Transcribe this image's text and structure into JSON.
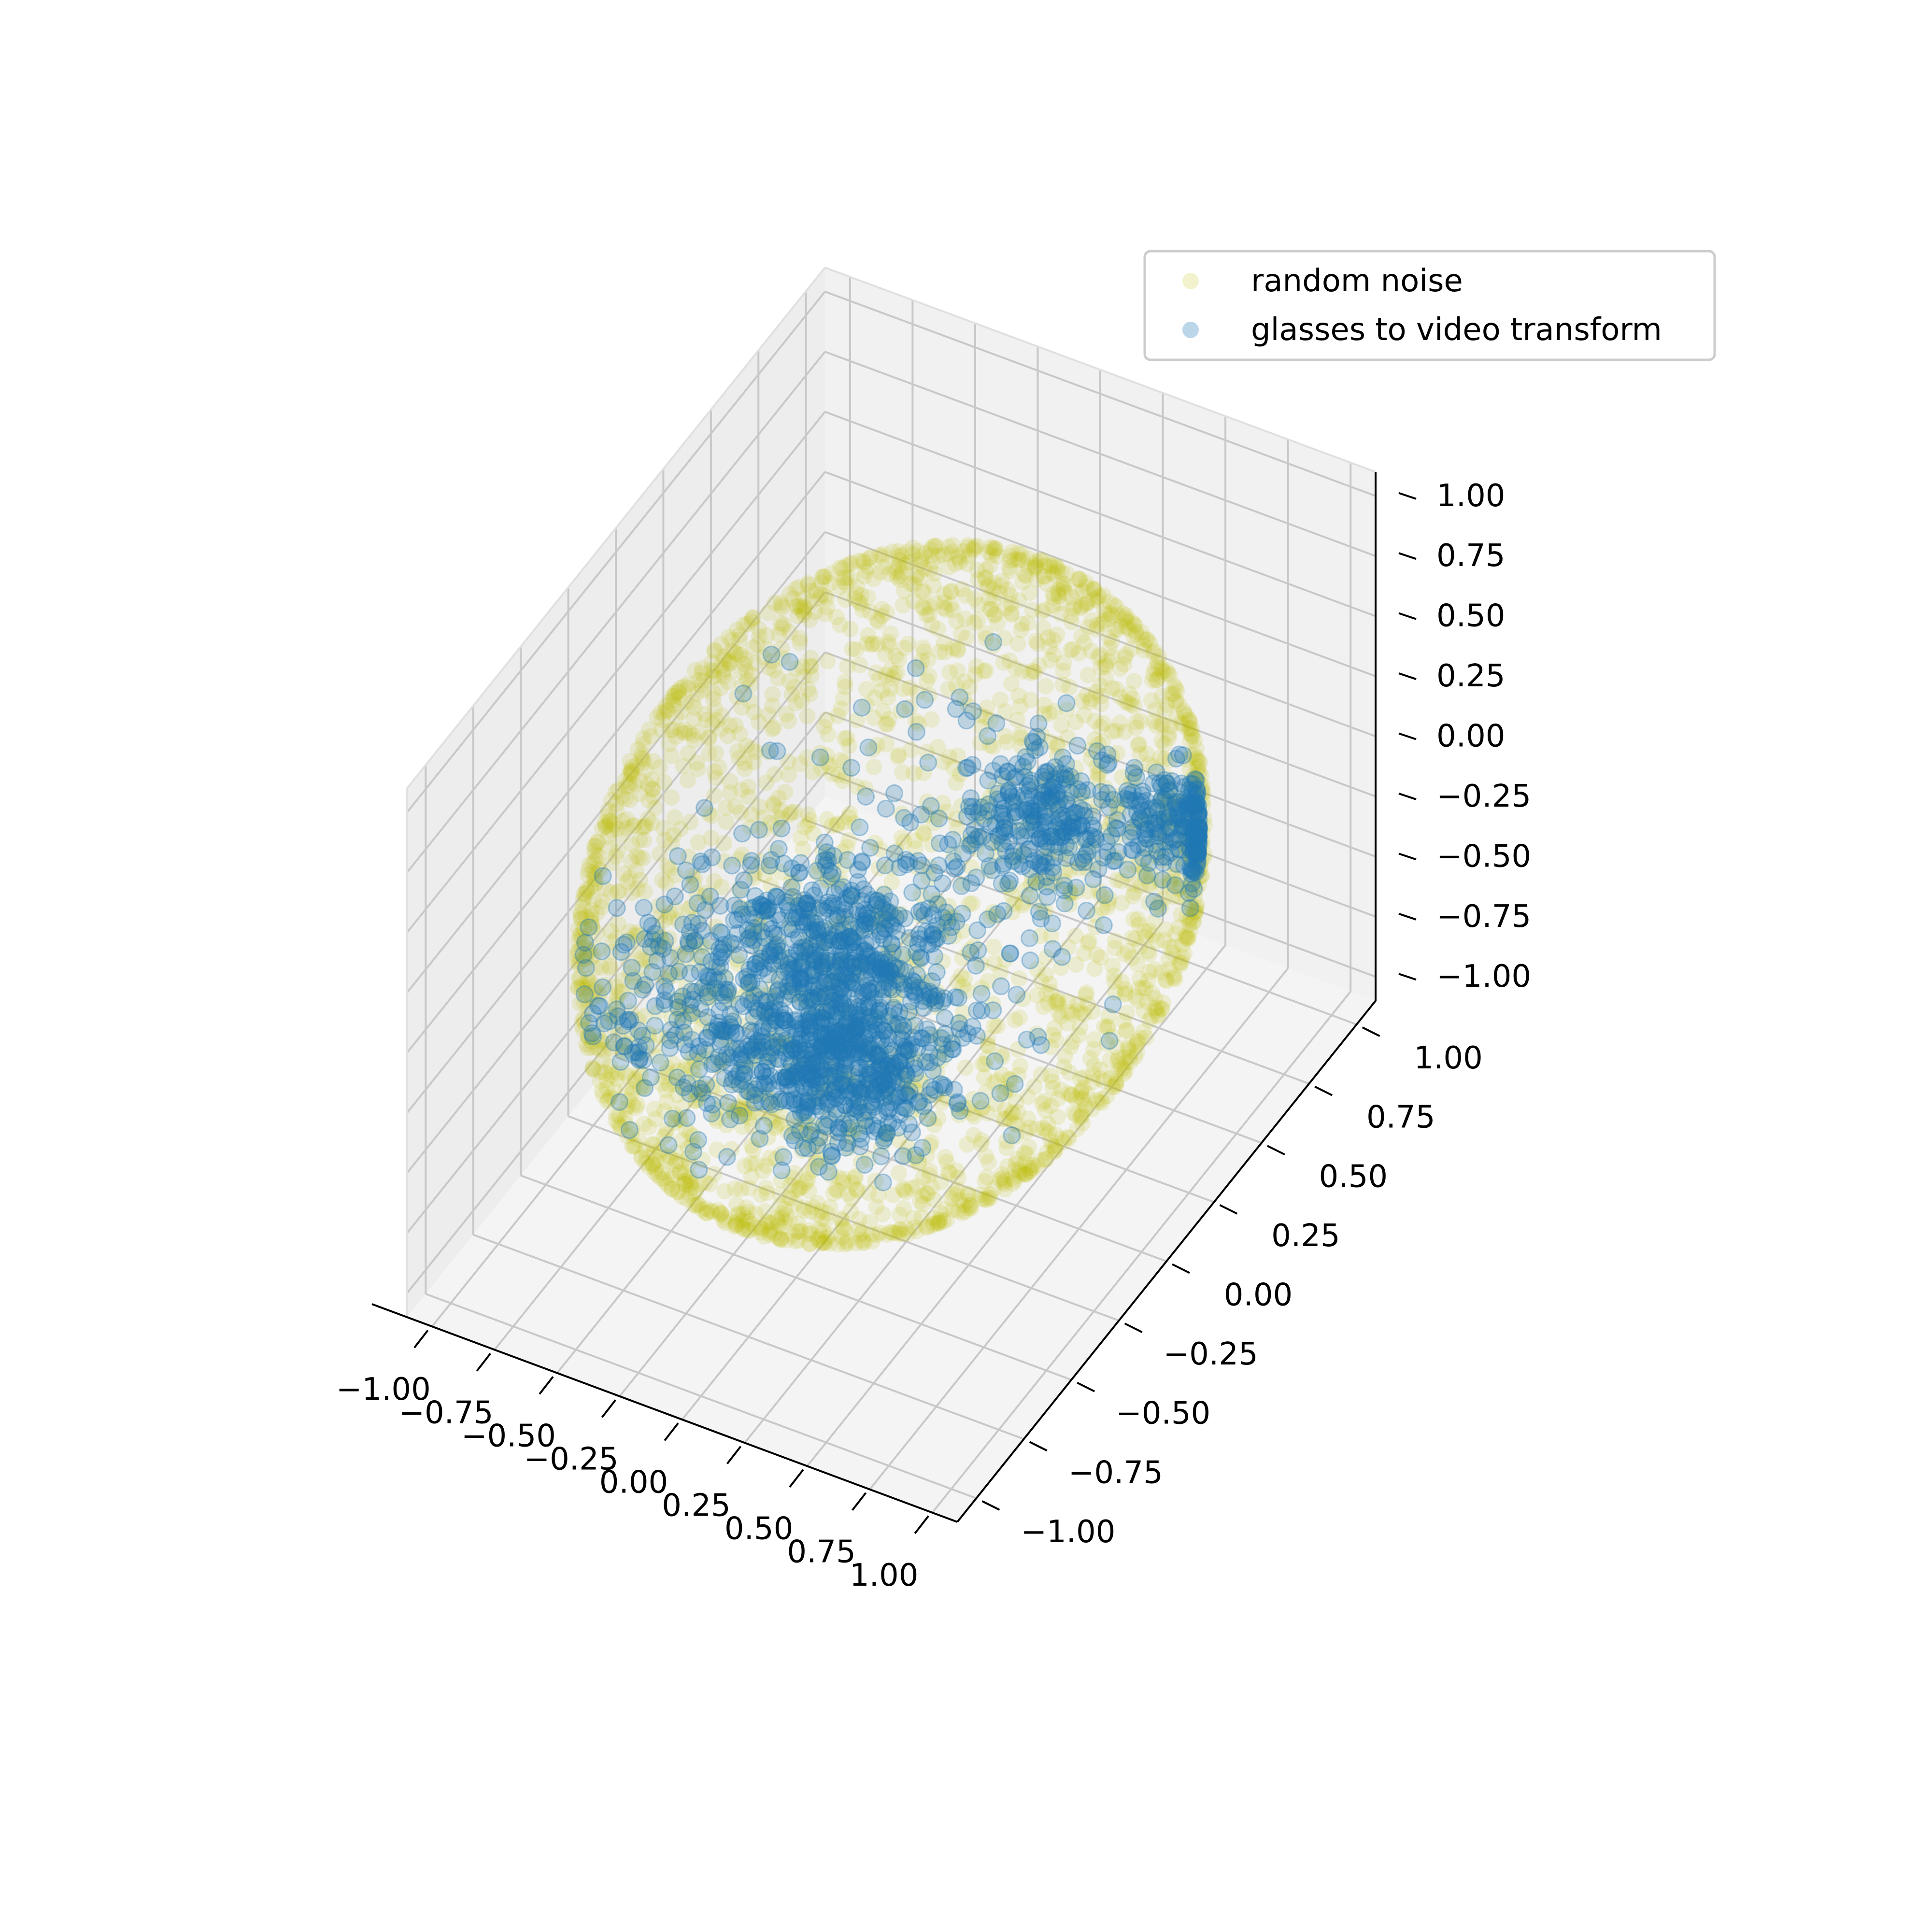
{
  "chart_data": {
    "type": "scatter",
    "dimensions": 3,
    "title": "",
    "xlabel": "",
    "ylabel": "",
    "zlabel": "",
    "xlim": [
      -1.1,
      1.1
    ],
    "ylim": [
      -1.1,
      1.1
    ],
    "zlim": [
      -1.1,
      1.1
    ],
    "x_ticks": [
      "−1.00",
      "−0.75",
      "−0.50",
      "−0.25",
      "0.00",
      "0.25",
      "0.50",
      "0.75",
      "1.00"
    ],
    "y_ticks": [
      "−1.00",
      "−0.75",
      "−0.50",
      "−0.25",
      "0.00",
      "0.25",
      "0.50",
      "0.75",
      "1.00"
    ],
    "z_ticks": [
      "−1.00",
      "−0.75",
      "−0.50",
      "−0.25",
      "0.00",
      "0.25",
      "0.50",
      "0.75",
      "1.00"
    ],
    "grid": true,
    "legend_position": "top-right",
    "series": [
      {
        "name": "random noise",
        "color": "#bfbf00",
        "alpha": 0.15,
        "shape": "points uniformly on the unit sphere (radius 1)"
      },
      {
        "name": "glasses to video transform",
        "color": "#1f77b4",
        "alpha": 0.25,
        "clusters": [
          {
            "x": 0.15,
            "y": -0.45,
            "z": -0.2,
            "spread": 0.18
          },
          {
            "x": -0.05,
            "y": -0.2,
            "z": -0.05,
            "spread": 0.22
          },
          {
            "x": 0.35,
            "y": 0.3,
            "z": 0.15,
            "spread": 0.15
          },
          {
            "x": 0.75,
            "y": 0.55,
            "z": 0.05,
            "spread": 0.12
          },
          {
            "x": -0.3,
            "y": -0.6,
            "z": 0.05,
            "spread": 0.25
          }
        ]
      }
    ]
  }
}
